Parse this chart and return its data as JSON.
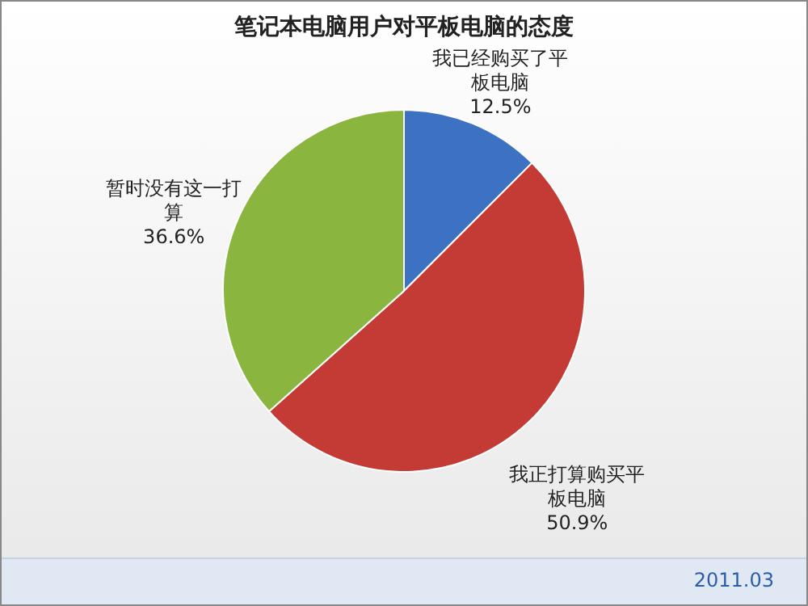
{
  "chart_data": {
    "type": "pie",
    "title": "笔记本电脑用户对平板电脑的态度",
    "categories": [
      "我已经购买了平板电脑",
      "我正打算购买平板电脑",
      "暂时没有这一打算"
    ],
    "values": [
      12.5,
      50.9,
      36.6
    ],
    "colors": [
      "#3d72c2",
      "#c43a34",
      "#8ab63f"
    ],
    "value_labels": [
      "12.5%",
      "50.9%",
      "36.6%"
    ],
    "annotations": [
      "2011.03"
    ],
    "legend": false
  }
}
